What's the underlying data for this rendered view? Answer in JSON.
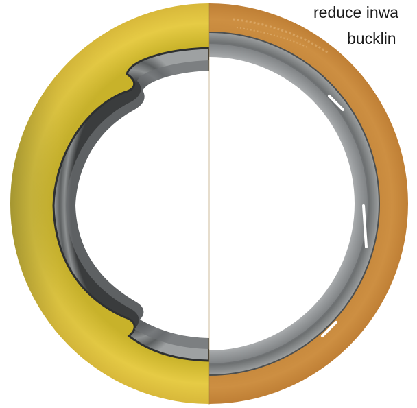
{
  "caption": {
    "line_1": "reduce inwa",
    "line_2": "bucklin"
  },
  "figure": {
    "subject": "spiral wound gasket, split view",
    "left_half_ring_color": "#e2c23a",
    "right_half_ring_color": "#c98a3c",
    "winding_color": "#7d7f80",
    "inner_ring_color": "#a9acae",
    "icon": "gasket-photo"
  }
}
